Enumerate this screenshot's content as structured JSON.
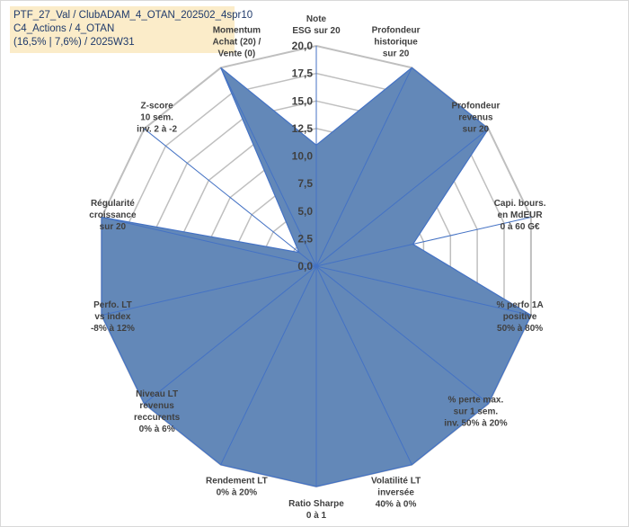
{
  "header": {
    "line1": "PTF_27_Val / ClubADAM_4_OTAN_202502_4spr10",
    "line2": "C4_Actions / 4_OTAN",
    "line3": "(16,5% | 7,6%) / 2025W31"
  },
  "chart_data": {
    "type": "radar",
    "title": "",
    "categories": [
      "Note|ESG sur 20",
      "Profondeur|historique|sur 20",
      "Profondeur|revenus|sur 20",
      "Capi. bours.|en MdEUR|0 à 60 G€",
      "% perfo 1A|positive|50% à 80%",
      "% perte max.|sur 1 sem.|inv. 50% à 20%",
      "Volatilité LT|inversée|40% à 0%",
      "Ratio Sharpe|0 à 1",
      "Rendement LT|0% à 20%",
      "Niveau LT|revenus|reccurents|0% à 6%",
      "Perfo. LT|vs index|-8% à 12%",
      "Régularité|croissance|sur 20",
      "Z-score|10 sem.|inv. 2 à -2",
      "Momentum|Achat (20) /|Vente (0)"
    ],
    "series": [
      {
        "values": [
          11.0,
          20.0,
          20.0,
          9.0,
          20.0,
          20.0,
          20.0,
          20.0,
          20.0,
          20.0,
          20.0,
          20.0,
          2.0,
          20.0
        ]
      }
    ],
    "rlim": [
      0,
      20
    ],
    "ticks": [
      "0,0",
      "2,5",
      "5,0",
      "7,5",
      "10,0",
      "12,5",
      "15,0",
      "17,5",
      "20,0"
    ],
    "fill_color": "#6388b8",
    "stroke_color": "#4472c4",
    "grid_color": "#bfbfbf",
    "momentum_label_color": "#a89060"
  }
}
